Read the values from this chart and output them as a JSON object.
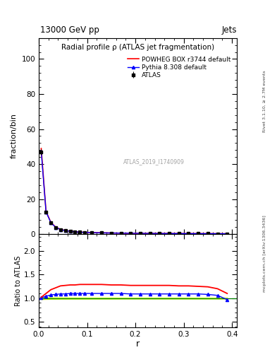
{
  "title": "Radial profile ρ (ATLAS jet fragmentation)",
  "top_left_label": "13000 GeV pp",
  "top_right_label": "Jets",
  "right_label_top": "Rivet 3.1.10, ≥ 2.7M events",
  "right_label_bottom": "mcplots.cern.ch [arXiv:1306.3436]",
  "watermark": "ATLAS_2019_I1740909",
  "ylabel_main": "fraction/bin",
  "ylabel_ratio": "Ratio to ATLAS",
  "xlabel": "r",
  "ylim_main": [
    0,
    112
  ],
  "yticks_main": [
    0,
    20,
    40,
    60,
    80,
    100
  ],
  "ylim_ratio": [
    0.38,
    2.35
  ],
  "yticks_ratio": [
    0.5,
    1.0,
    1.5,
    2.0
  ],
  "xlim": [
    0.0,
    0.41
  ],
  "xticks": [
    0.0,
    0.1,
    0.2,
    0.3,
    0.4
  ],
  "r_values": [
    0.005,
    0.015,
    0.025,
    0.035,
    0.045,
    0.055,
    0.065,
    0.075,
    0.085,
    0.095,
    0.11,
    0.13,
    0.15,
    0.17,
    0.19,
    0.21,
    0.23,
    0.25,
    0.27,
    0.29,
    0.31,
    0.33,
    0.35,
    0.37,
    0.39
  ],
  "atlas_values": [
    47.0,
    12.5,
    6.5,
    3.8,
    2.6,
    2.0,
    1.6,
    1.35,
    1.15,
    1.0,
    0.88,
    0.75,
    0.65,
    0.58,
    0.52,
    0.48,
    0.44,
    0.41,
    0.38,
    0.36,
    0.34,
    0.32,
    0.3,
    0.28,
    0.26
  ],
  "atlas_errors": [
    1.5,
    0.4,
    0.2,
    0.12,
    0.09,
    0.07,
    0.06,
    0.05,
    0.04,
    0.04,
    0.03,
    0.03,
    0.025,
    0.022,
    0.02,
    0.018,
    0.016,
    0.015,
    0.014,
    0.013,
    0.012,
    0.011,
    0.01,
    0.009,
    0.009
  ],
  "powheg_values": [
    49.0,
    13.0,
    6.8,
    4.0,
    2.75,
    2.1,
    1.7,
    1.42,
    1.22,
    1.06,
    0.93,
    0.8,
    0.69,
    0.61,
    0.55,
    0.51,
    0.47,
    0.44,
    0.41,
    0.38,
    0.36,
    0.34,
    0.32,
    0.3,
    0.27
  ],
  "pythia_values": [
    47.5,
    12.8,
    6.6,
    3.9,
    2.65,
    2.05,
    1.65,
    1.38,
    1.18,
    1.02,
    0.9,
    0.77,
    0.67,
    0.6,
    0.53,
    0.49,
    0.45,
    0.42,
    0.39,
    0.37,
    0.35,
    0.33,
    0.31,
    0.29,
    0.265
  ],
  "powheg_ratio": [
    1.02,
    1.1,
    1.18,
    1.22,
    1.26,
    1.27,
    1.28,
    1.28,
    1.29,
    1.29,
    1.29,
    1.29,
    1.28,
    1.28,
    1.27,
    1.27,
    1.27,
    1.27,
    1.27,
    1.26,
    1.26,
    1.25,
    1.24,
    1.2,
    1.1
  ],
  "pythia_ratio": [
    1.01,
    1.04,
    1.07,
    1.08,
    1.09,
    1.09,
    1.1,
    1.1,
    1.1,
    1.1,
    1.1,
    1.1,
    1.1,
    1.1,
    1.09,
    1.09,
    1.09,
    1.09,
    1.09,
    1.09,
    1.09,
    1.09,
    1.08,
    1.06,
    0.97
  ],
  "atlas_ratio_err_low": [
    0.02,
    0.018,
    0.016,
    0.015,
    0.014,
    0.014,
    0.013,
    0.013,
    0.013,
    0.013,
    0.012,
    0.012,
    0.012,
    0.011,
    0.011,
    0.011,
    0.011,
    0.011,
    0.011,
    0.011,
    0.011,
    0.011,
    0.011,
    0.011,
    0.012
  ],
  "atlas_ratio_err_high": [
    0.02,
    0.018,
    0.016,
    0.015,
    0.014,
    0.014,
    0.013,
    0.013,
    0.013,
    0.013,
    0.012,
    0.012,
    0.012,
    0.011,
    0.011,
    0.011,
    0.011,
    0.011,
    0.011,
    0.011,
    0.011,
    0.011,
    0.011,
    0.011,
    0.012
  ],
  "atlas_color": "#000000",
  "powheg_color": "#ff0000",
  "pythia_color": "#0000ff",
  "atlas_band_color": "#ccff00",
  "legend_atlas": "ATLAS",
  "legend_powheg": "POWHEG BOX r3744 default",
  "legend_pythia": "Pythia 8.308 default"
}
